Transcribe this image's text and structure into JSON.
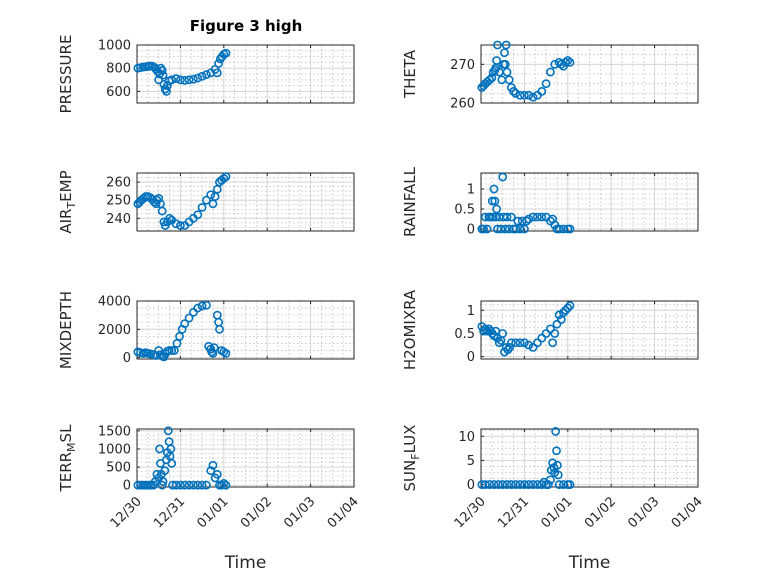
{
  "figure": {
    "title": "Figure 3 high",
    "marker_color": "#0072bd"
  },
  "chart_data": [
    {
      "type": "scatter",
      "ylabel": "PRESSURE",
      "ylabel_sub": null,
      "ylim": [
        500,
        1000
      ],
      "yticks": [
        600,
        800,
        1000
      ],
      "ytick_labels": [
        "600",
        "800",
        "1000"
      ],
      "x_range": [
        "12/30",
        "01/04"
      ],
      "x_tick_labels": [
        "12/30",
        "12/31",
        "01/01",
        "01/02",
        "01/03",
        "01/04"
      ],
      "xlabel": "",
      "points": [
        [
          0.02,
          800
        ],
        [
          0.08,
          805
        ],
        [
          0.14,
          810
        ],
        [
          0.2,
          812
        ],
        [
          0.26,
          815
        ],
        [
          0.3,
          820
        ],
        [
          0.35,
          818
        ],
        [
          0.4,
          808
        ],
        [
          0.44,
          790
        ],
        [
          0.48,
          770
        ],
        [
          0.5,
          700
        ],
        [
          0.52,
          750
        ],
        [
          0.55,
          800
        ],
        [
          0.58,
          780
        ],
        [
          0.6,
          740
        ],
        [
          0.62,
          660
        ],
        [
          0.65,
          620
        ],
        [
          0.68,
          600
        ],
        [
          0.7,
          650
        ],
        [
          0.74,
          690
        ],
        [
          0.8,
          700
        ],
        [
          0.9,
          710
        ],
        [
          1.0,
          700
        ],
        [
          1.1,
          695
        ],
        [
          1.2,
          700
        ],
        [
          1.3,
          705
        ],
        [
          1.4,
          715
        ],
        [
          1.5,
          730
        ],
        [
          1.6,
          745
        ],
        [
          1.7,
          760
        ],
        [
          1.8,
          790
        ],
        [
          1.85,
          760
        ],
        [
          1.88,
          840
        ],
        [
          1.92,
          880
        ],
        [
          1.96,
          900
        ],
        [
          2.0,
          920
        ],
        [
          2.05,
          930
        ]
      ]
    },
    {
      "type": "scatter",
      "ylabel": "THETA",
      "ylabel_sub": null,
      "ylim": [
        260,
        275
      ],
      "yticks": [
        260,
        270
      ],
      "ytick_labels": [
        "260",
        "270"
      ],
      "x_range": [
        "12/30",
        "01/04"
      ],
      "x_tick_labels": [
        "12/30",
        "12/31",
        "01/01",
        "01/02",
        "01/03",
        "01/04"
      ],
      "xlabel": "",
      "points": [
        [
          0.02,
          264
        ],
        [
          0.06,
          264.5
        ],
        [
          0.1,
          265
        ],
        [
          0.15,
          265.5
        ],
        [
          0.2,
          266
        ],
        [
          0.25,
          266.5
        ],
        [
          0.28,
          268
        ],
        [
          0.32,
          268.5
        ],
        [
          0.34,
          269
        ],
        [
          0.36,
          271
        ],
        [
          0.38,
          275
        ],
        [
          0.42,
          268
        ],
        [
          0.48,
          266
        ],
        [
          0.52,
          270
        ],
        [
          0.54,
          273
        ],
        [
          0.56,
          270
        ],
        [
          0.58,
          275
        ],
        [
          0.6,
          268
        ],
        [
          0.65,
          266
        ],
        [
          0.7,
          264
        ],
        [
          0.75,
          263
        ],
        [
          0.8,
          262.5
        ],
        [
          0.9,
          262
        ],
        [
          1.0,
          262
        ],
        [
          1.1,
          262
        ],
        [
          1.2,
          261.5
        ],
        [
          1.3,
          262
        ],
        [
          1.4,
          263
        ],
        [
          1.5,
          265
        ],
        [
          1.6,
          268
        ],
        [
          1.7,
          270
        ],
        [
          1.8,
          270.5
        ],
        [
          1.85,
          270
        ],
        [
          1.9,
          269.5
        ],
        [
          1.95,
          270.5
        ],
        [
          2.0,
          271
        ],
        [
          2.05,
          270.5
        ]
      ]
    },
    {
      "type": "scatter",
      "ylabel": "AIR",
      "ylabel_sub": "T",
      "ylabel_rest": "EMP",
      "ylim": [
        233,
        265
      ],
      "yticks": [
        240,
        250,
        260
      ],
      "ytick_labels": [
        "240",
        "250",
        "260"
      ],
      "x_range": [
        "12/30",
        "01/04"
      ],
      "x_tick_labels": [
        "12/30",
        "12/31",
        "01/01",
        "01/02",
        "01/03",
        "01/04"
      ],
      "xlabel": "",
      "points": [
        [
          0.02,
          248
        ],
        [
          0.06,
          249
        ],
        [
          0.1,
          250
        ],
        [
          0.15,
          251
        ],
        [
          0.2,
          252
        ],
        [
          0.25,
          252
        ],
        [
          0.3,
          251.5
        ],
        [
          0.35,
          250.5
        ],
        [
          0.4,
          249
        ],
        [
          0.44,
          248
        ],
        [
          0.46,
          250
        ],
        [
          0.5,
          251
        ],
        [
          0.54,
          248
        ],
        [
          0.58,
          244
        ],
        [
          0.62,
          238
        ],
        [
          0.65,
          236
        ],
        [
          0.7,
          238
        ],
        [
          0.75,
          240
        ],
        [
          0.8,
          239
        ],
        [
          0.9,
          237
        ],
        [
          1.0,
          236
        ],
        [
          1.1,
          236
        ],
        [
          1.2,
          238
        ],
        [
          1.3,
          240
        ],
        [
          1.4,
          242
        ],
        [
          1.5,
          246
        ],
        [
          1.6,
          250
        ],
        [
          1.7,
          253
        ],
        [
          1.75,
          248
        ],
        [
          1.8,
          252
        ],
        [
          1.85,
          256
        ],
        [
          1.9,
          260
        ],
        [
          1.95,
          261
        ],
        [
          2.0,
          262
        ],
        [
          2.05,
          263
        ]
      ]
    },
    {
      "type": "scatter",
      "ylabel": "RAINFALL",
      "ylabel_sub": null,
      "ylim": [
        -0.05,
        1.4
      ],
      "yticks": [
        0,
        0.5,
        1
      ],
      "ytick_labels": [
        "0",
        "0.5",
        "1"
      ],
      "x_range": [
        "12/30",
        "01/04"
      ],
      "x_tick_labels": [
        "12/30",
        "12/31",
        "01/01",
        "01/02",
        "01/03",
        "01/04"
      ],
      "xlabel": "",
      "points": [
        [
          0.02,
          0
        ],
        [
          0.06,
          0
        ],
        [
          0.1,
          0.3
        ],
        [
          0.14,
          0
        ],
        [
          0.18,
          0.3
        ],
        [
          0.22,
          0.3
        ],
        [
          0.26,
          0.7
        ],
        [
          0.28,
          0.3
        ],
        [
          0.3,
          1.0
        ],
        [
          0.32,
          0.7
        ],
        [
          0.34,
          0.3
        ],
        [
          0.36,
          0.5
        ],
        [
          0.38,
          0
        ],
        [
          0.42,
          0.3
        ],
        [
          0.46,
          0
        ],
        [
          0.5,
          1.3
        ],
        [
          0.52,
          0.3
        ],
        [
          0.56,
          0
        ],
        [
          0.6,
          0.3
        ],
        [
          0.65,
          0
        ],
        [
          0.7,
          0.3
        ],
        [
          0.75,
          0
        ],
        [
          0.8,
          0
        ],
        [
          0.85,
          0.2
        ],
        [
          0.9,
          0
        ],
        [
          0.95,
          0.2
        ],
        [
          1.0,
          0
        ],
        [
          1.05,
          0.2
        ],
        [
          1.1,
          0.25
        ],
        [
          1.2,
          0.3
        ],
        [
          1.3,
          0.3
        ],
        [
          1.4,
          0.3
        ],
        [
          1.5,
          0.3
        ],
        [
          1.6,
          0.2
        ],
        [
          1.65,
          0.25
        ],
        [
          1.7,
          0.1
        ],
        [
          1.75,
          0
        ],
        [
          1.8,
          0
        ],
        [
          1.9,
          0
        ],
        [
          2.0,
          0
        ],
        [
          2.05,
          0
        ]
      ]
    },
    {
      "type": "scatter",
      "ylabel": "MIXDEPTH",
      "ylabel_sub": null,
      "ylim": [
        -100,
        4000
      ],
      "yticks": [
        0,
        2000,
        4000
      ],
      "ytick_labels": [
        "0",
        "2000",
        "4000"
      ],
      "x_range": [
        "12/30",
        "01/04"
      ],
      "x_tick_labels": [
        "12/30",
        "12/31",
        "01/01",
        "01/02",
        "01/03",
        "01/04"
      ],
      "xlabel": "",
      "points": [
        [
          0.02,
          400
        ],
        [
          0.08,
          350
        ],
        [
          0.14,
          300
        ],
        [
          0.2,
          350
        ],
        [
          0.26,
          300
        ],
        [
          0.32,
          250
        ],
        [
          0.38,
          200
        ],
        [
          0.44,
          150
        ],
        [
          0.5,
          500
        ],
        [
          0.54,
          200
        ],
        [
          0.58,
          100
        ],
        [
          0.62,
          50
        ],
        [
          0.66,
          300
        ],
        [
          0.7,
          450
        ],
        [
          0.74,
          500
        ],
        [
          0.8,
          500
        ],
        [
          0.86,
          500
        ],
        [
          0.92,
          1000
        ],
        [
          0.98,
          1500
        ],
        [
          1.04,
          2000
        ],
        [
          1.1,
          2400
        ],
        [
          1.2,
          2800
        ],
        [
          1.3,
          3200
        ],
        [
          1.4,
          3500
        ],
        [
          1.5,
          3650
        ],
        [
          1.6,
          3700
        ],
        [
          1.65,
          800
        ],
        [
          1.7,
          600
        ],
        [
          1.72,
          400
        ],
        [
          1.75,
          300
        ],
        [
          1.78,
          700
        ],
        [
          1.85,
          3000
        ],
        [
          1.88,
          2500
        ],
        [
          1.9,
          2000
        ],
        [
          1.95,
          500
        ],
        [
          2.0,
          400
        ],
        [
          2.05,
          300
        ]
      ]
    },
    {
      "type": "scatter",
      "ylabel": "H2OMIXRA",
      "ylabel_sub": null,
      "ylim": [
        -0.05,
        1.2
      ],
      "yticks": [
        0,
        0.5,
        1
      ],
      "ytick_labels": [
        "0",
        "0.5",
        "1"
      ],
      "x_range": [
        "12/30",
        "01/04"
      ],
      "x_tick_labels": [
        "12/30",
        "12/31",
        "01/01",
        "01/02",
        "01/03",
        "01/04"
      ],
      "xlabel": "",
      "points": [
        [
          0.02,
          0.65
        ],
        [
          0.06,
          0.55
        ],
        [
          0.1,
          0.6
        ],
        [
          0.14,
          0.55
        ],
        [
          0.18,
          0.6
        ],
        [
          0.22,
          0.55
        ],
        [
          0.26,
          0.5
        ],
        [
          0.3,
          0.45
        ],
        [
          0.34,
          0.55
        ],
        [
          0.38,
          0.4
        ],
        [
          0.42,
          0.3
        ],
        [
          0.46,
          0.35
        ],
        [
          0.5,
          0.5
        ],
        [
          0.54,
          0.1
        ],
        [
          0.58,
          0.2
        ],
        [
          0.62,
          0.15
        ],
        [
          0.66,
          0.2
        ],
        [
          0.7,
          0.3
        ],
        [
          0.8,
          0.3
        ],
        [
          0.9,
          0.3
        ],
        [
          1.0,
          0.3
        ],
        [
          1.1,
          0.25
        ],
        [
          1.2,
          0.2
        ],
        [
          1.3,
          0.3
        ],
        [
          1.4,
          0.4
        ],
        [
          1.5,
          0.5
        ],
        [
          1.6,
          0.6
        ],
        [
          1.65,
          0.3
        ],
        [
          1.7,
          0.5
        ],
        [
          1.75,
          0.7
        ],
        [
          1.8,
          0.9
        ],
        [
          1.85,
          0.8
        ],
        [
          1.9,
          0.95
        ],
        [
          1.95,
          1.0
        ],
        [
          2.0,
          1.05
        ],
        [
          2.05,
          1.1
        ]
      ]
    },
    {
      "type": "scatter",
      "ylabel": "TERR",
      "ylabel_sub": "M",
      "ylabel_rest": "SL",
      "ylim": [
        -50,
        1550
      ],
      "yticks": [
        0,
        500,
        1000,
        1500
      ],
      "ytick_labels": [
        "0",
        "500",
        "1000",
        "1500"
      ],
      "x_range": [
        "12/30",
        "01/04"
      ],
      "x_tick_labels": [
        "12/30",
        "12/31",
        "01/01",
        "01/02",
        "01/03",
        "01/04"
      ],
      "xlabel": "Time",
      "points": [
        [
          0.02,
          0
        ],
        [
          0.08,
          0
        ],
        [
          0.14,
          0
        ],
        [
          0.2,
          0
        ],
        [
          0.26,
          0
        ],
        [
          0.32,
          0
        ],
        [
          0.38,
          0
        ],
        [
          0.42,
          100
        ],
        [
          0.46,
          300
        ],
        [
          0.5,
          200
        ],
        [
          0.52,
          1000
        ],
        [
          0.54,
          600
        ],
        [
          0.56,
          300
        ],
        [
          0.58,
          0
        ],
        [
          0.6,
          100
        ],
        [
          0.64,
          400
        ],
        [
          0.68,
          700
        ],
        [
          0.7,
          900
        ],
        [
          0.72,
          1500
        ],
        [
          0.74,
          1200
        ],
        [
          0.76,
          800
        ],
        [
          0.78,
          1000
        ],
        [
          0.8,
          600
        ],
        [
          0.82,
          0
        ],
        [
          0.9,
          0
        ],
        [
          1.0,
          0
        ],
        [
          1.1,
          0
        ],
        [
          1.2,
          0
        ],
        [
          1.3,
          0
        ],
        [
          1.4,
          0
        ],
        [
          1.5,
          0
        ],
        [
          1.6,
          0
        ],
        [
          1.7,
          400
        ],
        [
          1.75,
          550
        ],
        [
          1.8,
          200
        ],
        [
          1.85,
          300
        ],
        [
          1.9,
          0
        ],
        [
          1.95,
          0
        ],
        [
          2.0,
          50
        ],
        [
          2.05,
          0
        ]
      ]
    },
    {
      "type": "scatter",
      "ylabel": "SUN",
      "ylabel_sub": "F",
      "ylabel_rest": "LUX",
      "ylim": [
        -0.5,
        11.5
      ],
      "yticks": [
        0,
        5,
        10
      ],
      "ytick_labels": [
        "0",
        "5",
        "10"
      ],
      "x_range": [
        "12/30",
        "01/04"
      ],
      "x_tick_labels": [
        "12/30",
        "12/31",
        "01/01",
        "01/02",
        "01/03",
        "01/04"
      ],
      "xlabel": "Time",
      "points": [
        [
          0.02,
          0
        ],
        [
          0.1,
          0
        ],
        [
          0.2,
          0
        ],
        [
          0.3,
          0
        ],
        [
          0.4,
          0
        ],
        [
          0.5,
          0
        ],
        [
          0.6,
          0
        ],
        [
          0.7,
          0
        ],
        [
          0.8,
          0
        ],
        [
          0.9,
          0
        ],
        [
          1.0,
          0
        ],
        [
          1.1,
          0
        ],
        [
          1.2,
          0
        ],
        [
          1.3,
          0
        ],
        [
          1.4,
          0
        ],
        [
          1.45,
          0.5
        ],
        [
          1.5,
          0
        ],
        [
          1.55,
          0
        ],
        [
          1.6,
          1.0
        ],
        [
          1.62,
          3
        ],
        [
          1.65,
          4.5
        ],
        [
          1.68,
          3.5
        ],
        [
          1.7,
          2.5
        ],
        [
          1.72,
          11
        ],
        [
          1.74,
          7
        ],
        [
          1.76,
          4
        ],
        [
          1.78,
          2
        ],
        [
          1.8,
          0
        ],
        [
          1.9,
          0
        ],
        [
          2.0,
          0
        ],
        [
          2.05,
          0
        ]
      ]
    }
  ]
}
